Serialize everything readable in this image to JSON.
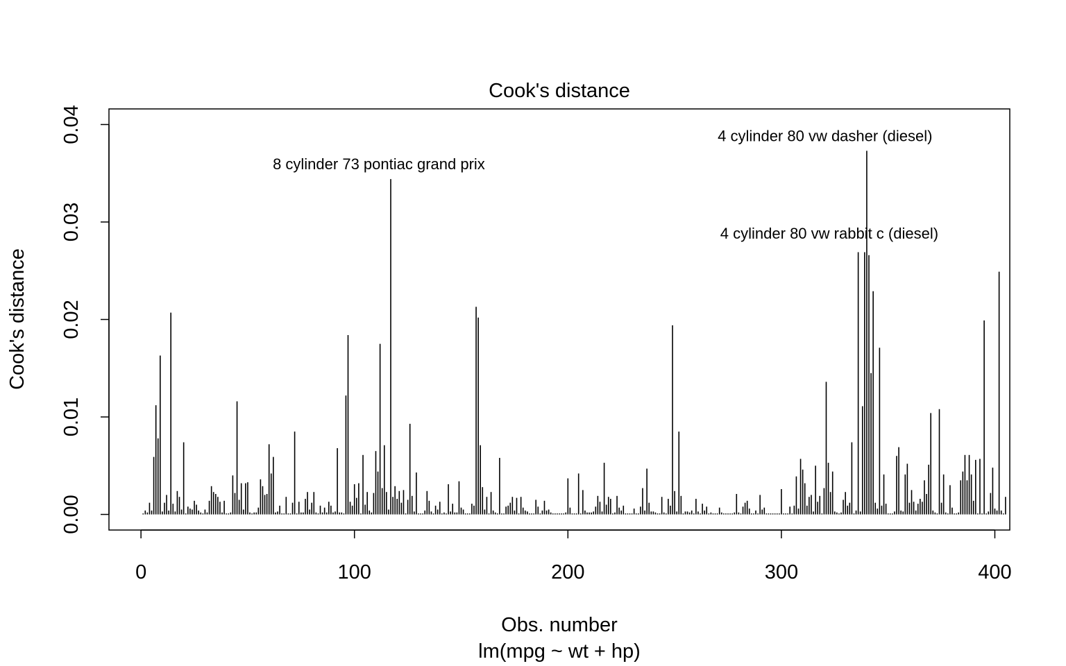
{
  "chart_data": {
    "type": "bar",
    "title": "Cook's distance",
    "xlabel": "Obs. number",
    "subtitle": "lm(mpg ~ wt + hp)",
    "ylabel": "Cook's distance",
    "xlim": [
      -15,
      407
    ],
    "ylim": [
      -0.0016,
      0.0416
    ],
    "x_ticks": [
      0,
      100,
      200,
      300,
      400
    ],
    "x_tick_labels": [
      "0",
      "100",
      "200",
      "300",
      "400"
    ],
    "y_ticks": [
      0,
      0.01,
      0.02,
      0.03,
      0.04
    ],
    "y_tick_labels": [
      "0.00",
      "0.01",
      "0.02",
      "0.03",
      "0.04"
    ],
    "grid": false,
    "annotations": [
      {
        "label": "8 cylinder 73 pontiac grand prix",
        "x": 116,
        "y": 0.0344
      },
      {
        "label": "4 cylinder 80 vw dasher (diesel)",
        "x": 325,
        "y": 0.0373
      },
      {
        "label": "4 cylinder 80 vw rabbit c (diesel)",
        "x": 327,
        "y": 0.0273
      }
    ],
    "values": [
      0.0001,
      0.0004,
      0.0002,
      0.0012,
      0.0004,
      0.0059,
      0.0112,
      0.0078,
      0.0163,
      0.0003,
      0.0012,
      0.002,
      0.0004,
      0.0207,
      0.0011,
      0.0003,
      0.0024,
      0.0018,
      0.0005,
      0.0074,
      0.0001,
      0.0008,
      0.0006,
      0.0005,
      0.0014,
      0.001,
      0.0004,
      0.0002,
      0.0001,
      0.0005,
      0.0002,
      0.0014,
      0.0029,
      0.0023,
      0.0021,
      0.0018,
      0.0013,
      0.0002,
      0.0014,
      0.0001,
      0.0001,
      0.0002,
      0.004,
      0.0022,
      0.0116,
      0.0015,
      0.0032,
      0.0005,
      0.0032,
      0.0033,
      0.0002,
      0.0001,
      0.0002,
      0.0002,
      0.0007,
      0.0036,
      0.0029,
      0.002,
      0.0021,
      0.0072,
      0.0042,
      0.0059,
      0.0002,
      0.0003,
      0.0009,
      0.0001,
      0.0001,
      0.0018,
      0.0001,
      0.0001,
      0.0012,
      0.0085,
      0.0001,
      0.0013,
      0.0002,
      0.0002,
      0.0016,
      0.0023,
      0.0005,
      0.0012,
      0.0023,
      0.0002,
      0.0001,
      0.0009,
      0.0002,
      0.0007,
      0.0002,
      0.0013,
      0.0009,
      0.0002,
      0.0003,
      0.0068,
      0.0002,
      0.0002,
      0.0001,
      0.0122,
      0.0184,
      0.0013,
      0.0009,
      0.0031,
      0.0017,
      0.0032,
      0.0001,
      0.0061,
      0.001,
      0.0023,
      0.0004,
      0.0002,
      0.0022,
      0.0065,
      0.0044,
      0.0175,
      0.0027,
      0.0071,
      0.0023,
      0.0005,
      0.0344,
      0.0018,
      0.0029,
      0.0016,
      0.0024,
      0.0012,
      0.0025,
      0.0001,
      0.0015,
      0.0093,
      0.0019,
      0.0003,
      0.0043,
      0.0001,
      0.0001,
      0.0001,
      0.0004,
      0.0024,
      0.0014,
      0.0003,
      0.0001,
      0.0009,
      0.0005,
      0.0013,
      0.0001,
      0.0002,
      0.0001,
      0.0031,
      0.0003,
      0.0011,
      0.0002,
      0.0002,
      0.0034,
      0.0007,
      0.0005,
      0.0001,
      0.0001,
      0.0001,
      0.0011,
      0.0009,
      0.0213,
      0.0202,
      0.0071,
      0.0028,
      0.0005,
      0.0018,
      0.0001,
      0.0023,
      0.0004,
      0.0002,
      0.0001,
      0.0058,
      0.0001,
      0.0001,
      0.0008,
      0.0009,
      0.0012,
      0.0018,
      0.0004,
      0.0017,
      0.0001,
      0.0018,
      0.0007,
      0.0004,
      0.0003,
      0.0001,
      0.0001,
      0.0001,
      0.0015,
      0.0008,
      0.0001,
      0.0004,
      0.0014,
      0.0004,
      0.0005,
      0.0002,
      0.0001,
      0.0001,
      0.0001,
      0.0001,
      0.0001,
      0.0001,
      0.0002,
      0.0037,
      0.0007,
      0.0001,
      0.0001,
      0.0001,
      0.0042,
      0.0001,
      0.0025,
      0.0004,
      0.0002,
      0.0002,
      0.0002,
      0.0003,
      0.0008,
      0.0019,
      0.0013,
      0.0003,
      0.0053,
      0.001,
      0.0018,
      0.0016,
      0.0001,
      0.0002,
      0.0019,
      0.0007,
      0.0004,
      0.0009,
      0.0001,
      0.0001,
      0.0001,
      0.0001,
      0.0006,
      0.0001,
      0.0001,
      0.0008,
      0.0027,
      0.0004,
      0.0047,
      0.0012,
      0.0003,
      0.0003,
      0.0002,
      0.0001,
      0.0001,
      0.0018,
      0.0002,
      0.0001,
      0.0016,
      0.0009,
      0.0194,
      0.0024,
      0.0003,
      0.0085,
      0.0019,
      0.0001,
      0.0003,
      0.0003,
      0.0002,
      0.0004,
      0.0001,
      0.0016,
      0.0003,
      0.0001,
      0.0011,
      0.0004,
      0.0008,
      0.0001,
      0.0002,
      0.0001,
      0.0001,
      0.0001,
      0.0007,
      0.0002,
      0.0001,
      0.0001,
      0.0001,
      0.0001,
      0.0001,
      0.0002,
      0.0021,
      0.0002,
      0.0001,
      0.0008,
      0.0012,
      0.0014,
      0.0006,
      0.0001,
      0.0001,
      0.0004,
      0.0001,
      0.002,
      0.0005,
      0.0007,
      0.0001,
      0.0001,
      0.0001,
      0.0001,
      0.0001,
      0.0001,
      0.0001,
      0.0026,
      0.0001,
      0.0001,
      0.0001,
      0.0008,
      0.0001,
      0.0009,
      0.0039,
      0.0006,
      0.0057,
      0.0046,
      0.0032,
      0.0009,
      0.0018,
      0.002,
      0.0003,
      0.005,
      0.0013,
      0.0019,
      0.0001,
      0.0027,
      0.0136,
      0.0053,
      0.0023,
      0.0044,
      0.0003,
      0.0002,
      0.0001,
      0.0002,
      0.0015,
      0.0023,
      0.0009,
      0.0012,
      0.0074,
      0.0001,
      0.0004,
      0.0269,
      0.0003,
      0.0111,
      0.0269,
      0.0373,
      0.0266,
      0.0145,
      0.0229,
      0.0012,
      0.0006,
      0.0171,
      0.0009,
      0.0041,
      0.0011,
      0.0001,
      0.0001,
      0.0001,
      0.0003,
      0.006,
      0.0069,
      0.0004,
      0.0003,
      0.0041,
      0.0052,
      0.0012,
      0.0025,
      0.0013,
      0.0004,
      0.0011,
      0.0016,
      0.0013,
      0.0035,
      0.0021,
      0.0051,
      0.0104,
      0.0004,
      0.0002,
      0.0001,
      0.0108,
      0.0012,
      0.0041,
      0.0002,
      0.0001,
      0.003,
      0.0007,
      0.0001,
      0.0001,
      0.0002,
      0.0035,
      0.0044,
      0.0061,
      0.0035,
      0.0061,
      0.0041,
      0.0014,
      0.0056,
      0.0001,
      0.0057,
      0.0001,
      0.0199,
      0.0001,
      0.0003,
      0.0022,
      0.0048,
      0.0006,
      0.0004,
      0.0249,
      0.0004,
      0.0001,
      0.0018
    ]
  }
}
